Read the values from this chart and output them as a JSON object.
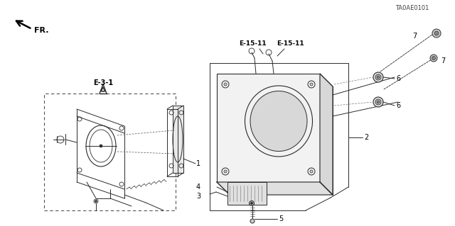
{
  "bg_color": "#ffffff",
  "lc": "#2a2a2a",
  "labels": {
    "E31": "E-3-1",
    "E1511a": "E-15-11",
    "E1511b": "E-15-11",
    "num1": "1",
    "num2": "2",
    "num3": "3",
    "num4": "4",
    "num5": "5",
    "num6a": "6",
    "num6b": "6",
    "num7a": "7",
    "num7b": "7",
    "fr": "FR.",
    "diagram_code": "TA0AE0101"
  }
}
